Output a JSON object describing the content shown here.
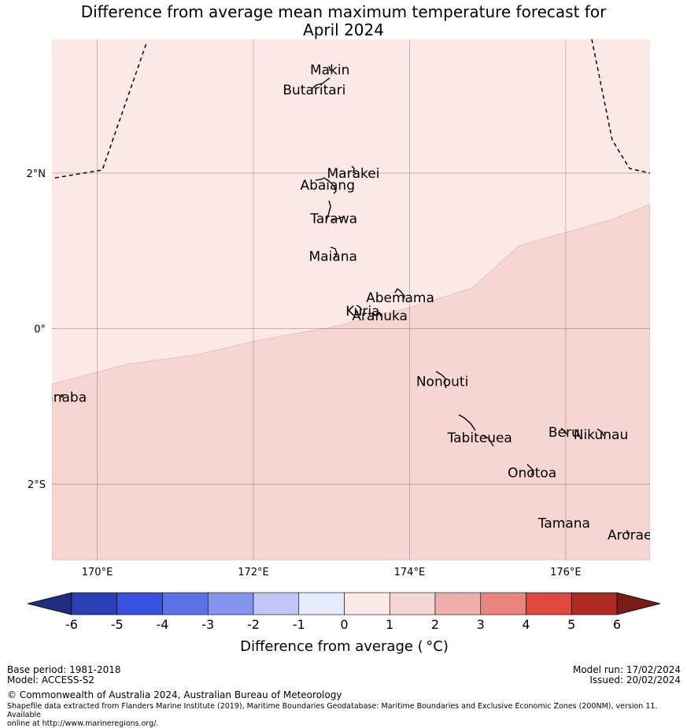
{
  "title_line1": "Difference from average mean maximum temperature forecast for",
  "title_line2": "April 2024",
  "lat_ticks": [
    {
      "value": 2,
      "label": "2°N"
    },
    {
      "value": 0,
      "label": "0°"
    },
    {
      "value": -2,
      "label": "2°S"
    }
  ],
  "lon_ticks": [
    {
      "value": 170,
      "label": "170°E"
    },
    {
      "value": 172,
      "label": "172°E"
    },
    {
      "value": 174,
      "label": "174°E"
    },
    {
      "value": 176,
      "label": "176°E"
    }
  ],
  "map_region": {
    "lon_range": [
      169.42,
      177.08
    ],
    "lat_range": [
      -2.98,
      3.72
    ]
  },
  "forecast_zones": [
    {
      "range": "0 to 1",
      "color": "#fbe9e7"
    },
    {
      "range": "1 to 2",
      "color": "#f5d6d3"
    }
  ],
  "islands": [
    {
      "name": "Makin",
      "lon": 172.98,
      "lat": 3.33
    },
    {
      "name": "Butaritari",
      "lon": 172.78,
      "lat": 3.07
    },
    {
      "name": "Marakei",
      "lon": 173.28,
      "lat": 2.0
    },
    {
      "name": "Abaiang",
      "lon": 172.95,
      "lat": 1.85
    },
    {
      "name": "Tarawa",
      "lon": 173.03,
      "lat": 1.42
    },
    {
      "name": "Maiana",
      "lon": 173.02,
      "lat": 0.93
    },
    {
      "name": "Abemama",
      "lon": 173.88,
      "lat": 0.4
    },
    {
      "name": "Kuria",
      "lon": 173.4,
      "lat": 0.23
    },
    {
      "name": "Aranuka",
      "lon": 173.62,
      "lat": 0.17
    },
    {
      "name": "Nonouti",
      "lon": 174.42,
      "lat": -0.68
    },
    {
      "name": "Banaba",
      "lon": 169.54,
      "lat": -0.88
    },
    {
      "name": "Tabiteuea",
      "lon": 174.9,
      "lat": -1.4
    },
    {
      "name": "Beru",
      "lon": 175.98,
      "lat": -1.33
    },
    {
      "name": "Nikunau",
      "lon": 176.45,
      "lat": -1.36
    },
    {
      "name": "Onotoa",
      "lon": 175.57,
      "lat": -1.85
    },
    {
      "name": "Tamana",
      "lon": 175.98,
      "lat": -2.5
    },
    {
      "name": "Arorae",
      "lon": 176.82,
      "lat": -2.65
    }
  ],
  "colorbar": {
    "title": "Difference from average ( °C)",
    "ticks": [
      "-6",
      "-5",
      "-4",
      "-3",
      "-2",
      "-1",
      "0",
      "1",
      "2",
      "3",
      "4",
      "5",
      "6"
    ],
    "colors": [
      "#2a3fb6",
      "#3752e0",
      "#5b73e8",
      "#8595ee",
      "#c0c7f6",
      "#e6ebfb",
      "#fbe9e7",
      "#f5d6d3",
      "#efb0ac",
      "#e9857c",
      "#df4a3e",
      "#ad2b22"
    ],
    "under_color": "#1f2d80",
    "over_color": "#7a1c16"
  },
  "footer": {
    "base_period": "Base period: 1981-2018",
    "model": "Model: ACCESS-S2",
    "model_run": "Model run: 17/02/2024",
    "issued": "Issued: 20/02/2024",
    "copyright": "© Commonwealth of Australia 2024, Australian Bureau of Meteorology",
    "shapefile_line1": "Shapefile data extracted from Flanders Marine Institute (2019), Maritime Boundaries Geodatabase: Maritime Boundaries and Exclusive Economic Zones (200NM), version 11. Available",
    "shapefile_line2": "online at http://www.marineregions.org/."
  }
}
